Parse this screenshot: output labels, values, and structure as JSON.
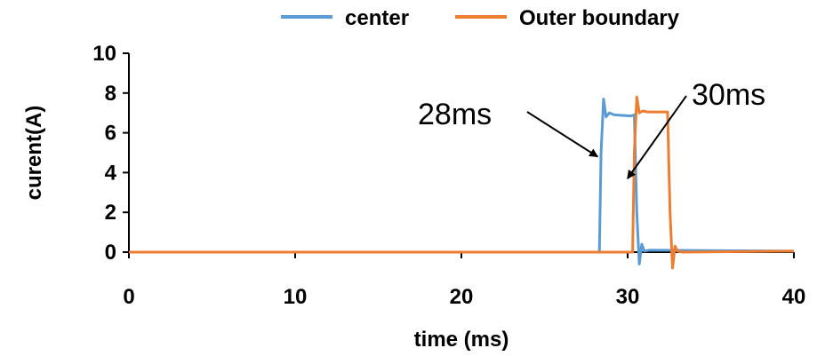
{
  "chart_data": {
    "type": "line",
    "title": "",
    "xlabel": "time (ms)",
    "ylabel": "curent(A)",
    "xlim": [
      0,
      40
    ],
    "ylim": [
      0,
      10
    ],
    "xticks": [
      0,
      10,
      20,
      30,
      40
    ],
    "yticks": [
      0,
      2,
      4,
      6,
      8,
      10
    ],
    "grid": false,
    "legend_position": "top",
    "series": [
      {
        "name": "center",
        "color": "#5B9BD5",
        "x": [
          0,
          28.3,
          28.4,
          28.55,
          28.7,
          28.9,
          29.2,
          30.2,
          30.4,
          30.55,
          30.7,
          30.85,
          31.0,
          31.3,
          40
        ],
        "y": [
          0,
          0,
          5.0,
          7.7,
          6.8,
          7.0,
          6.9,
          6.85,
          6.9,
          2.0,
          -0.6,
          0.4,
          0.05,
          0.1,
          0.05
        ]
      },
      {
        "name": "Outer boundary",
        "color": "#ED7D31",
        "x": [
          0,
          30.3,
          30.4,
          30.55,
          30.7,
          30.9,
          31.2,
          32.4,
          32.55,
          32.7,
          32.85,
          33.0,
          33.3,
          40
        ],
        "y": [
          0,
          0,
          5.0,
          7.8,
          7.0,
          7.1,
          7.05,
          7.05,
          2.0,
          -0.8,
          0.3,
          0.05,
          0.0,
          0.05
        ]
      }
    ],
    "annotations": [
      {
        "text": "28ms",
        "target_x": 28.3,
        "target_y": 4.8
      },
      {
        "text": "30ms",
        "target_x": 30.1,
        "target_y": 3.7
      }
    ]
  }
}
